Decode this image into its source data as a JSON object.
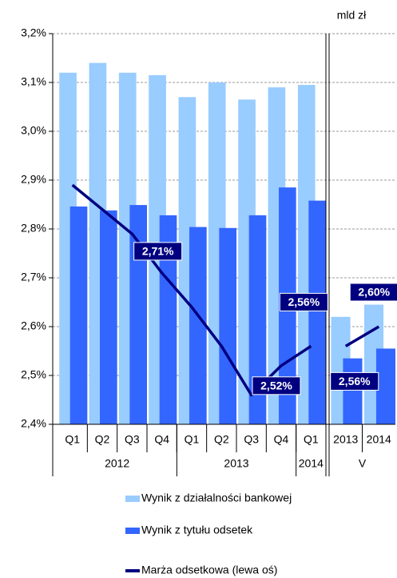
{
  "chart_data": {
    "type": "bar-line",
    "annotation": "mld zł",
    "groups": [
      {
        "name": "2012",
        "categories": [
          "Q1",
          "Q2",
          "Q3",
          "Q4"
        ]
      },
      {
        "name": "2013",
        "categories": [
          "Q1",
          "Q2",
          "Q3",
          "Q4"
        ]
      },
      {
        "name": "2014",
        "categories": [
          "Q1"
        ]
      },
      {
        "name": "V",
        "categories": [
          "2013",
          "2014"
        ]
      }
    ],
    "ylim": [
      2.4,
      3.2
    ],
    "yticks": [
      {
        "value": 2.4,
        "label": "2,4%"
      },
      {
        "value": 2.5,
        "label": "2,5%"
      },
      {
        "value": 2.6,
        "label": "2,6%"
      },
      {
        "value": 2.7,
        "label": "2,7%"
      },
      {
        "value": 2.8,
        "label": "2,8%"
      },
      {
        "value": 2.9,
        "label": "2,9%"
      },
      {
        "value": 3.0,
        "label": "3,0%"
      },
      {
        "value": 3.1,
        "label": "3,1%"
      },
      {
        "value": 3.2,
        "label": "3,2%"
      }
    ],
    "grid": true,
    "series": [
      {
        "name": "Wynik z działalności bankowej",
        "type": "bar",
        "color": "#99ccff",
        "values": [
          3.12,
          3.14,
          3.12,
          3.115,
          3.07,
          3.1,
          3.065,
          3.09,
          3.095,
          2.62,
          2.645
        ]
      },
      {
        "name": "Wynik z tytułu odsetek",
        "type": "bar",
        "color": "#3366ff",
        "values": [
          2.846,
          2.838,
          2.849,
          2.828,
          2.804,
          2.802,
          2.828,
          2.885,
          2.858,
          2.535,
          2.555
        ]
      },
      {
        "name": "Marża odsetkowa (lewa oś)",
        "type": "line",
        "color": "#000080",
        "values": [
          2.89,
          2.84,
          2.79,
          2.71,
          2.64,
          2.56,
          2.46,
          2.52,
          2.56,
          2.56,
          2.6
        ],
        "value_labels": [
          null,
          null,
          null,
          "2,71%",
          null,
          null,
          null,
          "2,52%",
          "2,56%",
          "2,56%",
          "2,60%"
        ]
      }
    ]
  }
}
